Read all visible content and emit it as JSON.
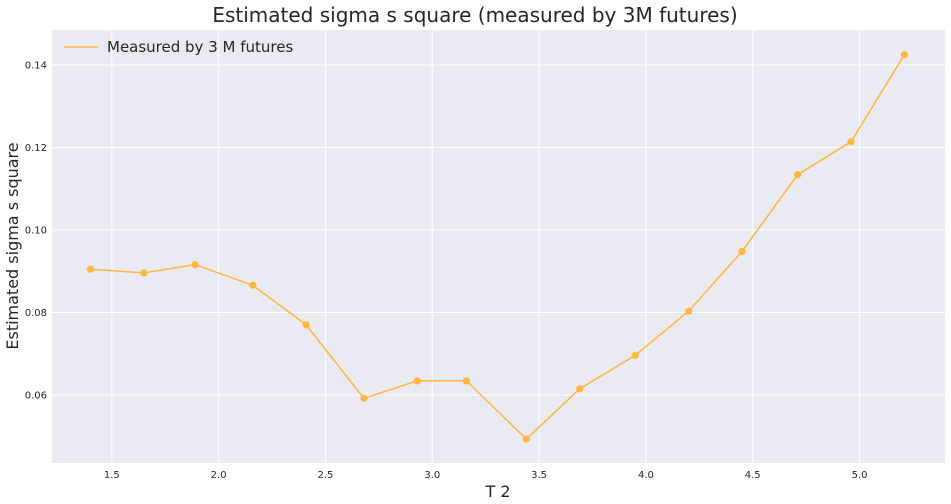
{
  "chart_data": {
    "type": "line",
    "title": "Estimated sigma s square (measured by 3M futures)",
    "xlabel": "T 2",
    "ylabel": "Estimated sigma s square",
    "xlim": [
      1.22,
      5.4
    ],
    "ylim": [
      0.0435,
      0.1485
    ],
    "xticks": [
      1.5,
      2.0,
      2.5,
      3.0,
      3.5,
      4.0,
      4.5,
      5.0
    ],
    "yticks": [
      0.06,
      0.08,
      0.1,
      0.12,
      0.14
    ],
    "xtick_labels": [
      "1.5",
      "2.0",
      "2.5",
      "3.0",
      "3.5",
      "4.0",
      "4.5",
      "5.0"
    ],
    "ytick_labels": [
      "0.06",
      "0.08",
      "0.10",
      "0.12",
      "0.14"
    ],
    "grid": true,
    "legend_position": "top-left",
    "colors": {
      "series": "#ffb63e",
      "background": "#eaeaf2",
      "grid": "#ffffff"
    },
    "series": [
      {
        "name": "Measured by 3 M futures",
        "x": [
          1.4,
          1.65,
          1.89,
          2.16,
          2.41,
          2.68,
          2.93,
          3.16,
          3.44,
          3.69,
          3.95,
          4.2,
          4.45,
          4.71,
          4.96,
          5.21
        ],
        "y": [
          0.0905,
          0.0896,
          0.0916,
          0.0866,
          0.077,
          0.0592,
          0.0634,
          0.0634,
          0.0493,
          0.0615,
          0.0696,
          0.0803,
          0.0948,
          0.1134,
          0.1214,
          0.1425
        ]
      }
    ]
  }
}
